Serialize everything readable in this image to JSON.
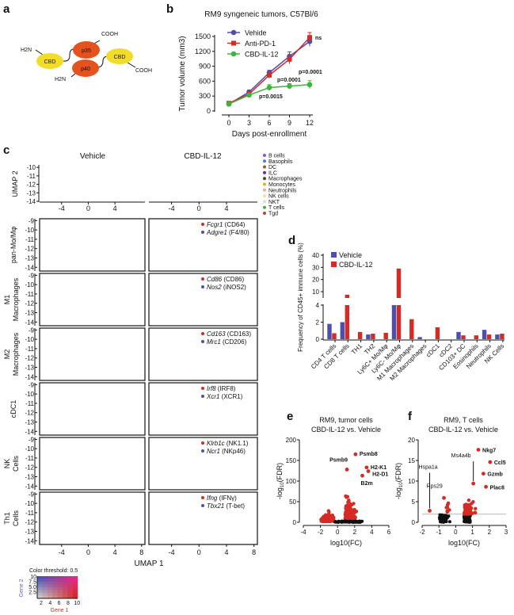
{
  "panel_labels": {
    "a": "a",
    "b": "b",
    "c": "c",
    "d": "d",
    "e": "e",
    "f": "f"
  },
  "panel_a": {
    "cbd_left": "CBD",
    "p35": "p35",
    "p40": "p40",
    "cbd_right": "CBD",
    "h2n_top": "H2N",
    "h2n_bottom": "H2N",
    "cooh_top": "COOH",
    "cooh_bottom": "COOH",
    "colors": {
      "cbd": "#f2dc2a",
      "subunit": "#e4521e"
    }
  },
  "panel_b": {
    "chart_data": {
      "type": "line",
      "title": "RM9 syngeneic tumors, C57Bl/6",
      "xlabel": "Days post-enrollment",
      "ylabel": "Tumor volume (mm3)",
      "x": [
        0,
        3,
        6,
        9,
        12
      ],
      "xticks": [
        "0",
        "3",
        "6",
        "9",
        "12"
      ],
      "yticks": [
        "0",
        "300",
        "600",
        "900",
        "1200",
        "1500"
      ],
      "ylim": [
        0,
        1500
      ],
      "legend_position": "top-left",
      "series": [
        {
          "name": "Vehide",
          "color": "#4a4fb0",
          "marker": "circle",
          "values": [
            140,
            380,
            770,
            1100,
            1400
          ],
          "errors": [
            20,
            40,
            50,
            90,
            100
          ]
        },
        {
          "name": "Anti-PD-1",
          "color": "#d62a24",
          "marker": "square",
          "values": [
            155,
            340,
            720,
            1040,
            1480
          ],
          "errors": [
            20,
            30,
            60,
            90,
            100
          ]
        },
        {
          "name": "CBD-IL-12",
          "color": "#3bb53a",
          "marker": "circle",
          "values": [
            140,
            320,
            470,
            500,
            530
          ],
          "errors": [
            20,
            25,
            60,
            50,
            80
          ]
        }
      ],
      "annotations": {
        "ns": "ns",
        "p_day6": "p=0.0015",
        "p_day9": "p=0.0001",
        "p_day12": "p=0.0001"
      }
    }
  },
  "panel_c": {
    "col_titles": [
      "Vehicle",
      "CBD-IL-12"
    ],
    "umap2_label": "UMAP 2",
    "umap1_label": "UMAP 1",
    "top_yticks": [
      "-10",
      "-11",
      "-12",
      "-13",
      "-14"
    ],
    "row_yticks": [
      "-9",
      "-10",
      "-11",
      "-12",
      "-13",
      "-14"
    ],
    "xticks_top": [
      "-4",
      "0",
      "4"
    ],
    "xticks_bottom": [
      "-4",
      "0",
      "4",
      "8"
    ],
    "cell_types": [
      {
        "name": "B cells",
        "color": "#9a4fc4"
      },
      {
        "name": "Basophils",
        "color": "#5a7cc8"
      },
      {
        "name": "DC",
        "color": "#8a6420"
      },
      {
        "name": "ILC",
        "color": "#6e2aa0"
      },
      {
        "name": "Macrophages",
        "color": "#444444"
      },
      {
        "name": "Monocytes",
        "color": "#f1a91a"
      },
      {
        "name": "Neutrophils",
        "color": "#f3a6a4"
      },
      {
        "name": "NK cells",
        "color": "#f0dfa8"
      },
      {
        "name": "NKT",
        "color": "#dddddd"
      },
      {
        "name": "T cells",
        "color": "#3cb83a"
      },
      {
        "name": "Tgd",
        "color": "#c0432a"
      }
    ],
    "rows": [
      {
        "label": "pan-Mo/Mφ",
        "gene1": "Fcgr1",
        "prot1": "(CD64)",
        "gene2": "Adgre1",
        "prot2": "(F4/80)"
      },
      {
        "label": "M1 Macrophages",
        "gene1": "Cd86",
        "prot1": "(CD86)",
        "gene2": "Nos2",
        "prot2": "(iNOS2)"
      },
      {
        "label": "M2 Macrophages",
        "gene1": "Cd163",
        "prot1": "(CD163)",
        "gene2": "Mrc1",
        "prot2": "(CD206)"
      },
      {
        "label": "cDC1",
        "gene1": "Irf8",
        "prot1": "(IRF8)",
        "gene2": "Xcr1",
        "prot2": "(XCR1)"
      },
      {
        "label": "NK Cells",
        "gene1": "Klrb1c",
        "prot1": "(NK1.1)",
        "gene2": "Ncr1",
        "prot2": "(NKp46)"
      },
      {
        "label": "Th1 Cells",
        "gene1": "Ifng",
        "prot1": "(IFNγ)",
        "gene2": "Tbx21",
        "prot2": "(T-bet)"
      }
    ],
    "color_key": {
      "title": "Color threshold: 0.5",
      "gene1_label": "Gene 1",
      "gene2_label": "Gene 2",
      "xticks": [
        "2",
        "4",
        "6",
        "8",
        "10"
      ],
      "yticks": [
        "10",
        "7.5",
        "5.0",
        "2.5"
      ],
      "gene1_color": "#d62a24",
      "gene2_color": "#4a4fb0",
      "base_color": "#c8c8c8"
    }
  },
  "panel_d": {
    "chart_data": {
      "type": "bar",
      "ylabel": "Frequency of CD45+ immune cells (%)",
      "yticks_lower": [
        "0",
        "2",
        "4"
      ],
      "yticks_upper": [
        "10",
        "20",
        "30",
        "40"
      ],
      "axis_break": [
        4,
        5
      ],
      "ylim": [
        0,
        40
      ],
      "legend_position": "top-left",
      "categories": [
        "CD4 T cells",
        "CD8 T cells",
        "TH1",
        "TH2",
        "Ly6C+ Mo/Mφ",
        "Ly6C- Mo/Mφ",
        "M1 Macrophages",
        "M2 Macrophages",
        "cDC1",
        "cDC2",
        "CD103+ DC",
        "Eosinophils",
        "Neutrophils",
        "NK Cells"
      ],
      "series": [
        {
          "name": "Vehicle",
          "color": "#4a4fb0",
          "values": [
            1.8,
            2.0,
            0,
            0.55,
            0,
            4.0,
            0,
            0.25,
            0,
            0,
            0.85,
            0,
            1.1,
            0.55
          ]
        },
        {
          "name": "CBD-IL-12",
          "color": "#d62a24",
          "values": [
            0.7,
            7.5,
            0.85,
            0.65,
            0.75,
            29,
            2.35,
            0,
            1.4,
            0,
            0.45,
            0.45,
            0.55,
            0.65
          ]
        }
      ]
    }
  },
  "panel_e": {
    "chart_data": {
      "type": "scatter",
      "title": [
        "RM9, tumor cells",
        "CBD-IL-12 vs. Vehicle"
      ],
      "xlabel": "log10(FC)",
      "ylabel": "-log10(FDR)",
      "xlim": [
        -4,
        6
      ],
      "ylim": [
        0,
        200
      ],
      "xticks": [
        "-4",
        "-2",
        "0",
        "2",
        "4",
        "6"
      ],
      "yticks": [
        "0",
        "50",
        "100",
        "150",
        "200"
      ],
      "colors": {
        "significant": "#d62a24",
        "not_significant": "#111111"
      },
      "labeled_points": [
        {
          "gene": "Psmb8",
          "x": 2.1,
          "y": 165
        },
        {
          "gene": "Psmb9",
          "x": 1.1,
          "y": 128
        },
        {
          "gene": "H2-K1",
          "x": 3.4,
          "y": 133
        },
        {
          "gene": "H2-D1",
          "x": 3.6,
          "y": 124
        },
        {
          "gene": "B2m",
          "x": 2.9,
          "y": 113
        }
      ]
    }
  },
  "panel_f": {
    "chart_data": {
      "type": "scatter",
      "title": [
        "RM9, T cells",
        "CBD-IL-12 vs. Vehicle"
      ],
      "xlabel": "log10(FC)",
      "ylabel": "-log10(FDR)",
      "xlim": [
        -2,
        3
      ],
      "ylim": [
        0,
        20
      ],
      "xticks": [
        "-2",
        "-1",
        "0",
        "1",
        "2",
        "3"
      ],
      "yticks": [
        "0",
        "5",
        "10",
        "15",
        "20"
      ],
      "threshold": 2,
      "colors": {
        "significant": "#d62a24",
        "not_significant": "#111111"
      },
      "labeled_points": [
        {
          "gene": "Nkg7",
          "x": 1.35,
          "y": 17.6
        },
        {
          "gene": "Ccl5",
          "x": 2.05,
          "y": 14.6
        },
        {
          "gene": "Gzmb",
          "x": 1.65,
          "y": 11.8
        },
        {
          "gene": "Plac8",
          "x": 1.8,
          "y": 8.6
        },
        {
          "gene": "Ms4a4b",
          "x": 1.05,
          "y": 9.4
        },
        {
          "gene": "Hspa1a",
          "x": -1.55,
          "y": 2.8
        },
        {
          "gene": "Rps29",
          "x": -0.7,
          "y": 5.9
        }
      ]
    }
  }
}
